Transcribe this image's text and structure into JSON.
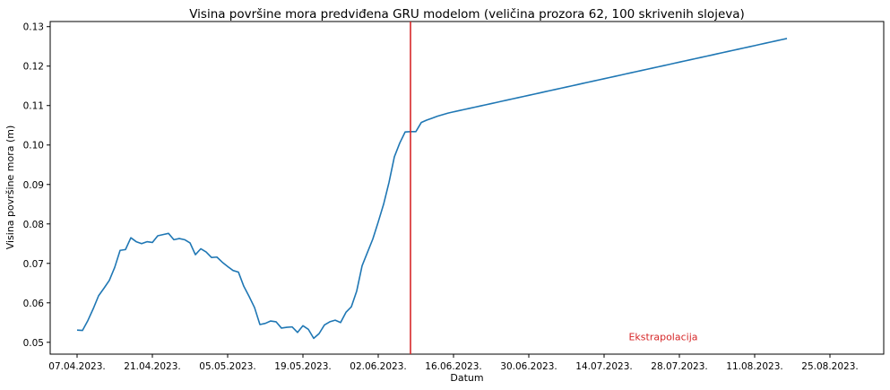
{
  "chart_data": {
    "type": "line",
    "title": "Visina površine mora predviđena GRU modelom (veličina prozora 62, 100 skrivenih slojeva)",
    "xlabel": "Datum",
    "ylabel": "Visina površine mora (m)",
    "x_start": "2023-04-07",
    "x_step_days": 1,
    "xlim": [
      "2023-04-02",
      "2023-09-04"
    ],
    "ylim": [
      0.047,
      0.1313
    ],
    "grid": false,
    "x_ticks": [
      "07.04.2023.",
      "21.04.2023.",
      "05.05.2023.",
      "19.05.2023.",
      "02.06.2023.",
      "16.06.2023.",
      "30.06.2023.",
      "14.07.2023.",
      "28.07.2023.",
      "11.08.2023.",
      "25.08.2023."
    ],
    "y_ticks": [
      "0.05",
      "0.06",
      "0.07",
      "0.08",
      "0.09",
      "0.10",
      "0.11",
      "0.12",
      "0.13"
    ],
    "y_tick_values": [
      0.05,
      0.06,
      0.07,
      0.08,
      0.09,
      0.1,
      0.11,
      0.12,
      0.13
    ],
    "line_color": "#1f77b4",
    "vline": {
      "x": "2023-06-08",
      "color": "#d62728"
    },
    "annotation": {
      "text": "Ekstrapolacija",
      "x": "2023-07-25",
      "y": 0.0505,
      "color": "#d62728"
    },
    "series": [
      {
        "values": [
          0.0531,
          0.053,
          0.0555,
          0.0585,
          0.0618,
          0.0637,
          0.0657,
          0.069,
          0.0733,
          0.0735,
          0.0765,
          0.0755,
          0.075,
          0.0755,
          0.0753,
          0.077,
          0.0773,
          0.0776,
          0.076,
          0.0763,
          0.076,
          0.0752,
          0.0722,
          0.0737,
          0.0729,
          0.0715,
          0.0716,
          0.0703,
          0.0692,
          0.0682,
          0.0678,
          0.0642,
          0.0616,
          0.0588,
          0.0545,
          0.0548,
          0.0554,
          0.0552,
          0.0536,
          0.0538,
          0.0539,
          0.0525,
          0.0542,
          0.0533,
          0.051,
          0.0522,
          0.0544,
          0.0552,
          0.0556,
          0.055,
          0.0576,
          0.059,
          0.063,
          0.0694,
          0.0728,
          0.0762,
          0.0805,
          0.085,
          0.0905,
          0.097,
          0.1005,
          0.1033,
          0.1034,
          0.1034,
          0.1057,
          0.1063,
          0.1068,
          0.1073,
          0.1077,
          0.1081,
          0.1084,
          0.1087,
          0.109,
          0.1093,
          0.1096,
          0.1099,
          0.1102,
          0.1105,
          0.1108,
          0.1111,
          0.1114,
          0.1117,
          0.112,
          0.1123,
          0.1126,
          0.1129,
          0.1132,
          0.1135,
          0.1138,
          0.1141,
          0.1144,
          0.1147,
          0.115,
          0.1153,
          0.1156,
          0.1159,
          0.1162,
          0.1165,
          0.1168,
          0.1171,
          0.1174,
          0.1177,
          0.118,
          0.1183,
          0.1186,
          0.1189,
          0.1192,
          0.1195,
          0.1198,
          0.1201,
          0.1204,
          0.1207,
          0.121,
          0.1213,
          0.1216,
          0.1219,
          0.1222,
          0.1225,
          0.1228,
          0.1231,
          0.1234,
          0.1237,
          0.124,
          0.1243,
          0.1246,
          0.1249,
          0.1252,
          0.1255,
          0.1258,
          0.1261,
          0.1264,
          0.1267,
          0.127
        ]
      }
    ]
  }
}
